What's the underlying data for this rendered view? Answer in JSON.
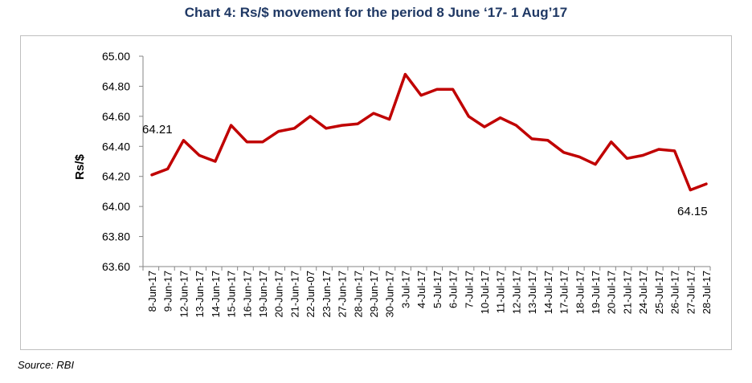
{
  "page": {
    "title": "Chart 4: Rs/$ movement for the period 8 June ‘17- 1 Aug’17",
    "source": "Source: RBI"
  },
  "chart_data": {
    "type": "line",
    "title": "Chart 4: Rs/$ movement for the period 8 June ‘17- 1 Aug’17",
    "xlabel": "",
    "ylabel": "Rs/$",
    "ylim": [
      63.6,
      65.0
    ],
    "yticks": [
      "65.00",
      "64.80",
      "64.60",
      "64.40",
      "64.20",
      "64.00",
      "63.80",
      "63.60"
    ],
    "grid": false,
    "legend": "none",
    "line_color": "#c00000",
    "categories": [
      "8-Jun-17",
      "9-Jun-17",
      "12-Jun-17",
      "13-Jun-17",
      "14-Jun-17",
      "15-Jun-17",
      "16-Jun-17",
      "19-Jun-17",
      "20-Jun-17",
      "21-Jun-17",
      "22-Jun-07",
      "23-Jun-17",
      "27-Jun-17",
      "28-Jun-17",
      "29-Jun-17",
      "30-Jun-17",
      "3-Jul-17",
      "4-Jul-17",
      "5-Jul-17",
      "6-Jul-17",
      "7-Jul-17",
      "10-Jul-17",
      "11-Jul-17",
      "12-Jul-17",
      "13-Jul-17",
      "14-Jul-17",
      "17-Jul-17",
      "18-Jul-17",
      "19-Jul-17",
      "20-Jul-17",
      "21-Jul-17",
      "24-Jul-17",
      "25-Jul-17",
      "26-Jul-17",
      "27-Jul-17",
      "28-Jul-17"
    ],
    "values": [
      64.21,
      64.25,
      64.44,
      64.34,
      64.3,
      64.54,
      64.43,
      64.43,
      64.5,
      64.52,
      64.6,
      64.52,
      64.54,
      64.55,
      64.62,
      64.58,
      64.88,
      64.74,
      64.78,
      64.78,
      64.6,
      64.53,
      64.59,
      64.54,
      64.45,
      64.44,
      64.36,
      64.33,
      64.28,
      64.43,
      64.32,
      64.34,
      64.38,
      64.37,
      64.11,
      64.15
    ],
    "annotations": [
      {
        "index": 0,
        "text": "64.21"
      },
      {
        "index": 35,
        "text": "64.15"
      }
    ]
  }
}
